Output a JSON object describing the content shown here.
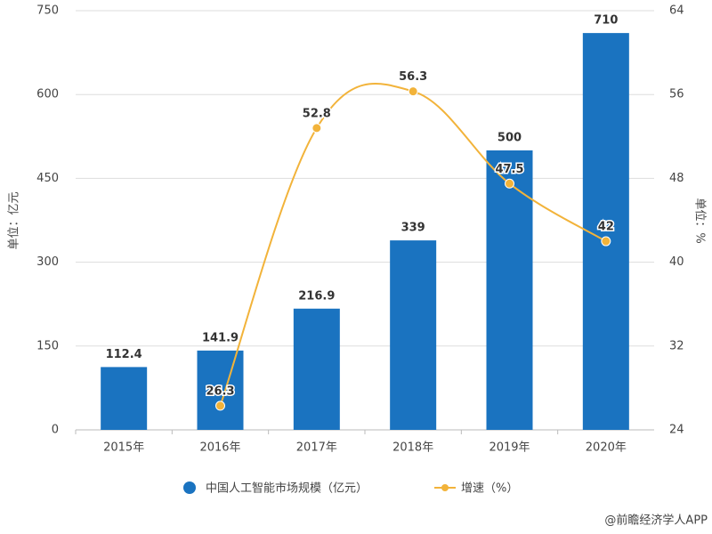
{
  "chart_data": {
    "type": "bar",
    "categories": [
      "2015年",
      "2016年",
      "2017年",
      "2018年",
      "2019年",
      "2020年"
    ],
    "series": [
      {
        "name": "中国人工智能市场规模（亿元）",
        "color": "#1a73c0",
        "values": [
          112.4,
          141.9,
          216.9,
          339,
          500,
          710
        ]
      },
      {
        "name": "增速（%）",
        "type": "line",
        "axis": "y2",
        "color": "#f2b33a",
        "values": [
          null,
          26.3,
          52.8,
          56.3,
          47.5,
          42
        ]
      }
    ],
    "ylabel": "单位：亿元",
    "y2label": "单位：%",
    "ylim": [
      0,
      750
    ],
    "yticks": [
      0,
      150,
      300,
      450,
      600,
      750
    ],
    "y2lim": [
      24,
      64
    ],
    "y2ticks": [
      24,
      32,
      40,
      48,
      56,
      64
    ],
    "grid": true,
    "legend": "bottom",
    "source": "@前瞻经济学人APP"
  }
}
